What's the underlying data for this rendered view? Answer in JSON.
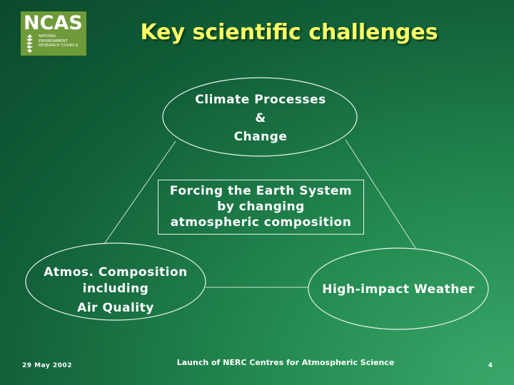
{
  "logo": {
    "title": "NCAS",
    "subtitle_lines": [
      "NATURAL",
      "ENVIRONMENT",
      "RESEARCH COUNCIL"
    ],
    "color": "#6f9a3a"
  },
  "slide": {
    "title": "Key scientific challenges",
    "title_color": "#ffff66"
  },
  "diagram": {
    "nodes": [
      {
        "lines": [
          "Climate Processes",
          "&",
          "Change"
        ]
      },
      {
        "lines": [
          "Atmos. Composition",
          "including",
          "Air Quality"
        ]
      },
      {
        "lines": [
          "High-impact Weather"
        ]
      }
    ],
    "center": {
      "lines": [
        "Forcing the Earth System",
        "by changing",
        "atmospheric composition"
      ]
    }
  },
  "footer": {
    "date": "29 May 2002",
    "event": "Launch of NERC Centres for Atmospheric Science",
    "page": "4"
  }
}
